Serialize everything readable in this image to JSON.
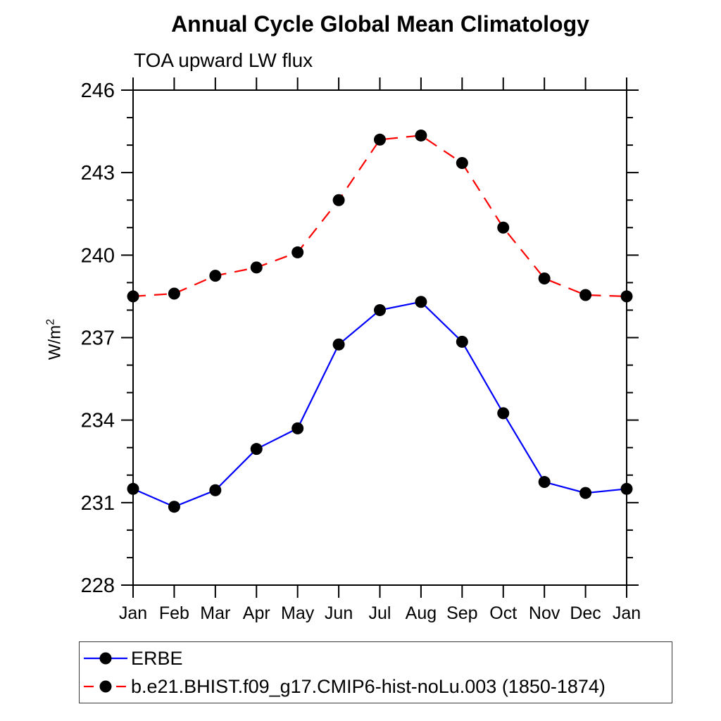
{
  "header": {
    "title": "Annual Cycle Global Mean Climatology",
    "subtitle": "TOA upward LW flux"
  },
  "chart_data": {
    "type": "line",
    "title": "Annual Cycle Global Mean Climatology",
    "subtitle": "TOA upward LW flux",
    "xlabel": "",
    "ylabel": "W/m²",
    "x_categories": [
      "Jan",
      "Feb",
      "Mar",
      "Apr",
      "May",
      "Jun",
      "Jul",
      "Aug",
      "Sep",
      "Oct",
      "Nov",
      "Dec",
      "Jan"
    ],
    "ylim": [
      228,
      246
    ],
    "y_major_ticks": [
      228,
      231,
      234,
      237,
      240,
      243,
      246
    ],
    "y_minor_step": 1,
    "grid": false,
    "legend_position": "bottom",
    "frame_color": "#000000",
    "marker_color": "#000000",
    "series": [
      {
        "name": "ERBE",
        "color": "#0000ff",
        "line_style": "solid",
        "marker": "circle",
        "values": [
          231.5,
          230.85,
          231.45,
          232.95,
          233.7,
          236.75,
          238.0,
          238.3,
          236.85,
          234.25,
          231.75,
          231.35,
          231.5
        ]
      },
      {
        "name": "b.e21.BHIST.f09_g17.CMIP6-hist-noLu.003 (1850-1874)",
        "color": "#ff0000",
        "line_style": "dashed",
        "marker": "circle",
        "values": [
          238.5,
          238.6,
          239.25,
          239.55,
          240.1,
          242.0,
          244.2,
          244.35,
          243.35,
          241.0,
          239.15,
          238.55,
          238.5
        ]
      }
    ]
  }
}
